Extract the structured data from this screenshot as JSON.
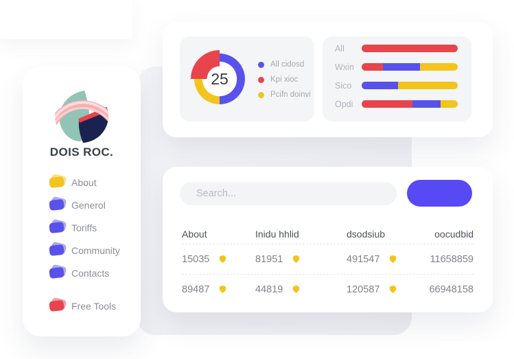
{
  "brand": {
    "name": "DOIS ROC."
  },
  "sidebar": {
    "items": [
      {
        "label": "About",
        "color": "#F2C41D"
      },
      {
        "label": "Generol",
        "color": "#5852EB"
      },
      {
        "label": "Toriffs",
        "color": "#5852EB"
      },
      {
        "label": "Community",
        "color": "#5852EB"
      },
      {
        "label": "Contacts",
        "color": "#5852EB"
      }
    ],
    "footer_item": {
      "label": "Free Tools",
      "color": "#E8444C"
    }
  },
  "stats": {
    "donut": {
      "center_value": "25",
      "segments": [
        {
          "label": "All cidosd",
          "color": "#5852EB",
          "percent": 50,
          "emphasis": false
        },
        {
          "label": "Pcifn doinvi",
          "color": "#F2C41D",
          "percent": 25,
          "emphasis": false
        },
        {
          "label": "Kpi xioc",
          "color": "#E8444C",
          "percent": 25,
          "emphasis": true
        }
      ],
      "legend": [
        {
          "label": "All cidosd",
          "color": "#5852EB"
        },
        {
          "label": "Kpi xioc",
          "color": "#E8444C"
        },
        {
          "label": "Pcifn doinvi",
          "color": "#F2C41D"
        }
      ]
    },
    "bars": [
      {
        "label": "All",
        "segments": [
          {
            "color": "#E8444C",
            "percent": 100
          }
        ]
      },
      {
        "label": "Wxin",
        "segments": [
          {
            "color": "#E8444C",
            "percent": 22
          },
          {
            "color": "#5852EB",
            "percent": 39
          },
          {
            "color": "#F2C41D",
            "percent": 39
          }
        ]
      },
      {
        "label": "Sico",
        "segments": [
          {
            "color": "#5852EB",
            "percent": 38
          },
          {
            "color": "#F2C41D",
            "percent": 62
          }
        ]
      },
      {
        "label": "Opdi",
        "segments": [
          {
            "color": "#E8444C",
            "percent": 53
          },
          {
            "color": "#5852EB",
            "percent": 29
          },
          {
            "color": "#F2C41D",
            "percent": 18
          }
        ]
      }
    ]
  },
  "table": {
    "search_placeholder": "Search...",
    "badge_icon_color": "#F2C41D",
    "columns": [
      "About",
      "Inidu hhlid",
      "dsodsiub",
      "oocudbid"
    ],
    "rows": [
      [
        "15035",
        "81951",
        "491547",
        "11658859"
      ],
      [
        "89487",
        "44819",
        "120587",
        "66948158"
      ]
    ]
  }
}
